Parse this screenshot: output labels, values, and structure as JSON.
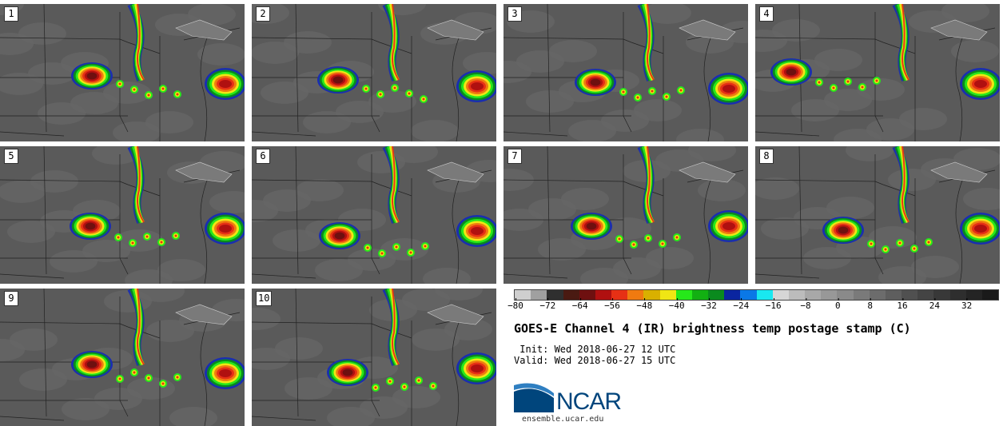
{
  "panels": [
    {
      "label": "1"
    },
    {
      "label": "2"
    },
    {
      "label": "3"
    },
    {
      "label": "4"
    },
    {
      "label": "5"
    },
    {
      "label": "6"
    },
    {
      "label": "7"
    },
    {
      "label": "8"
    },
    {
      "label": "9"
    },
    {
      "label": "10"
    }
  ],
  "colorbar": {
    "colors": [
      "#cfcfcf",
      "#a0a0a0",
      "#2f2f2f",
      "#4a1a12",
      "#6e1010",
      "#b01010",
      "#e63015",
      "#f07a10",
      "#d9b000",
      "#f0e614",
      "#26e81a",
      "#12b012",
      "#0a8a1e",
      "#0a25a0",
      "#0a78e6",
      "#19e8f0",
      "#d6d6d6",
      "#bcbcbc",
      "#a8a8a8",
      "#989898",
      "#8a8a8a",
      "#7a7a7a",
      "#6c6c6c",
      "#5e5e5e",
      "#505050",
      "#444444",
      "#383838",
      "#2e2e2e",
      "#242424",
      "#1a1a1a"
    ],
    "ticks": [
      "−80",
      "−72",
      "−64",
      "−56",
      "−48",
      "−40",
      "−32",
      "−24",
      "−16",
      "−8",
      "0",
      "8",
      "16",
      "24",
      "32"
    ],
    "min": -80,
    "max": 40
  },
  "title": "GOES-E Channel 4 (IR) brightness temp postage stamp (C)",
  "init": " Init: Wed 2018-06-27 12 UTC",
  "valid": "Valid: Wed 2018-06-27 15 UTC",
  "logo": {
    "text": "NCAR",
    "url": "ensemble.ucar.edu",
    "color": "#00457c"
  }
}
